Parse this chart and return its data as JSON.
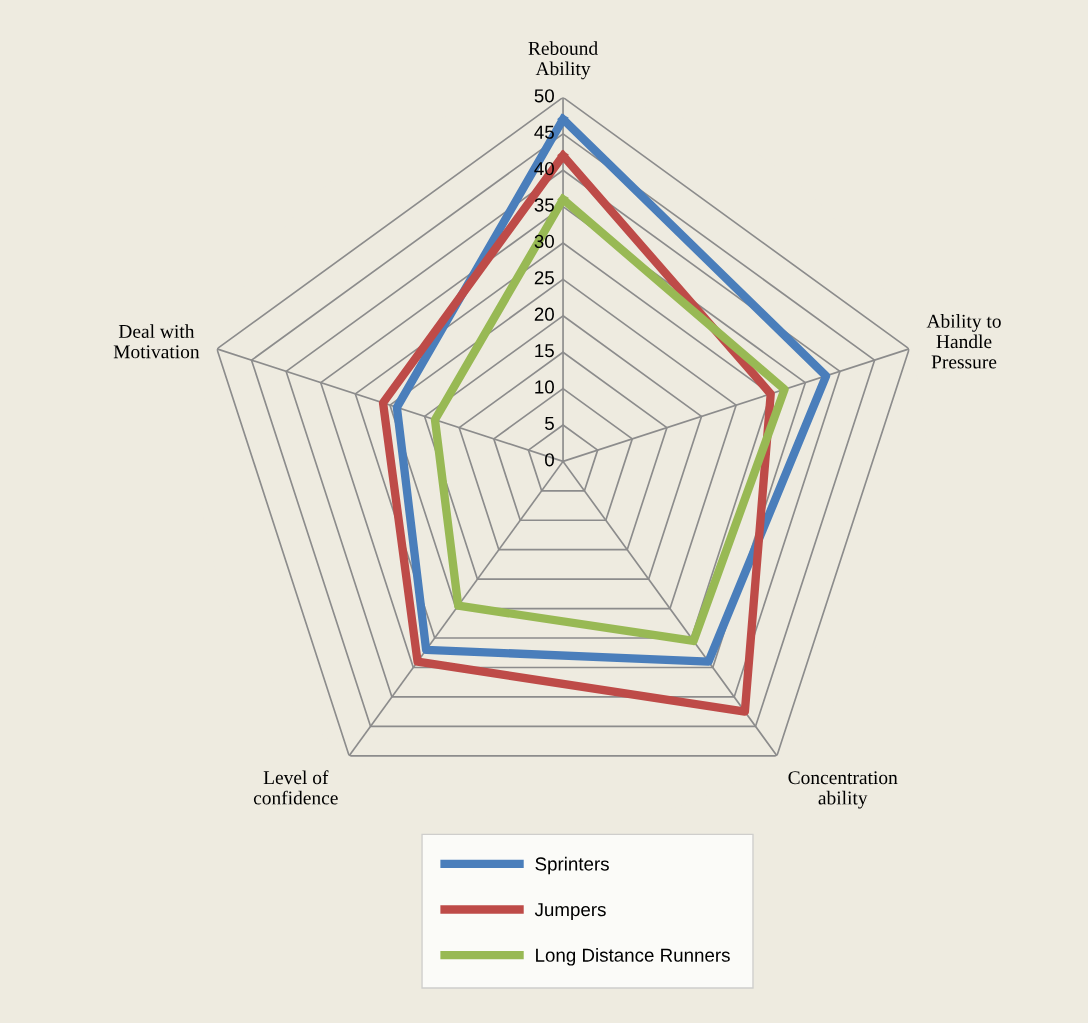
{
  "chart_data": {
    "type": "radar",
    "categories": [
      "Rebound Ability",
      "Ability to Handle Pressure",
      "Concentration ability",
      "Level of confidence",
      "Deal with Motivation"
    ],
    "series": [
      {
        "name": "Sprinters",
        "color": "#4a7ebb",
        "values": [
          47,
          38,
          34,
          32,
          24
        ]
      },
      {
        "name": "Jumpers",
        "color": "#be4b48",
        "values": [
          42,
          30,
          42.5,
          34,
          26
        ]
      },
      {
        "name": "Long Distance Runners",
        "color": "#98b954",
        "values": [
          36,
          32,
          30.5,
          24.5,
          18.5
        ]
      }
    ],
    "ylim": [
      0,
      50
    ],
    "yticks": [
      0,
      5,
      10,
      15,
      20,
      25,
      30,
      35,
      40,
      45,
      50
    ],
    "grid": true,
    "legend": "bottom"
  }
}
